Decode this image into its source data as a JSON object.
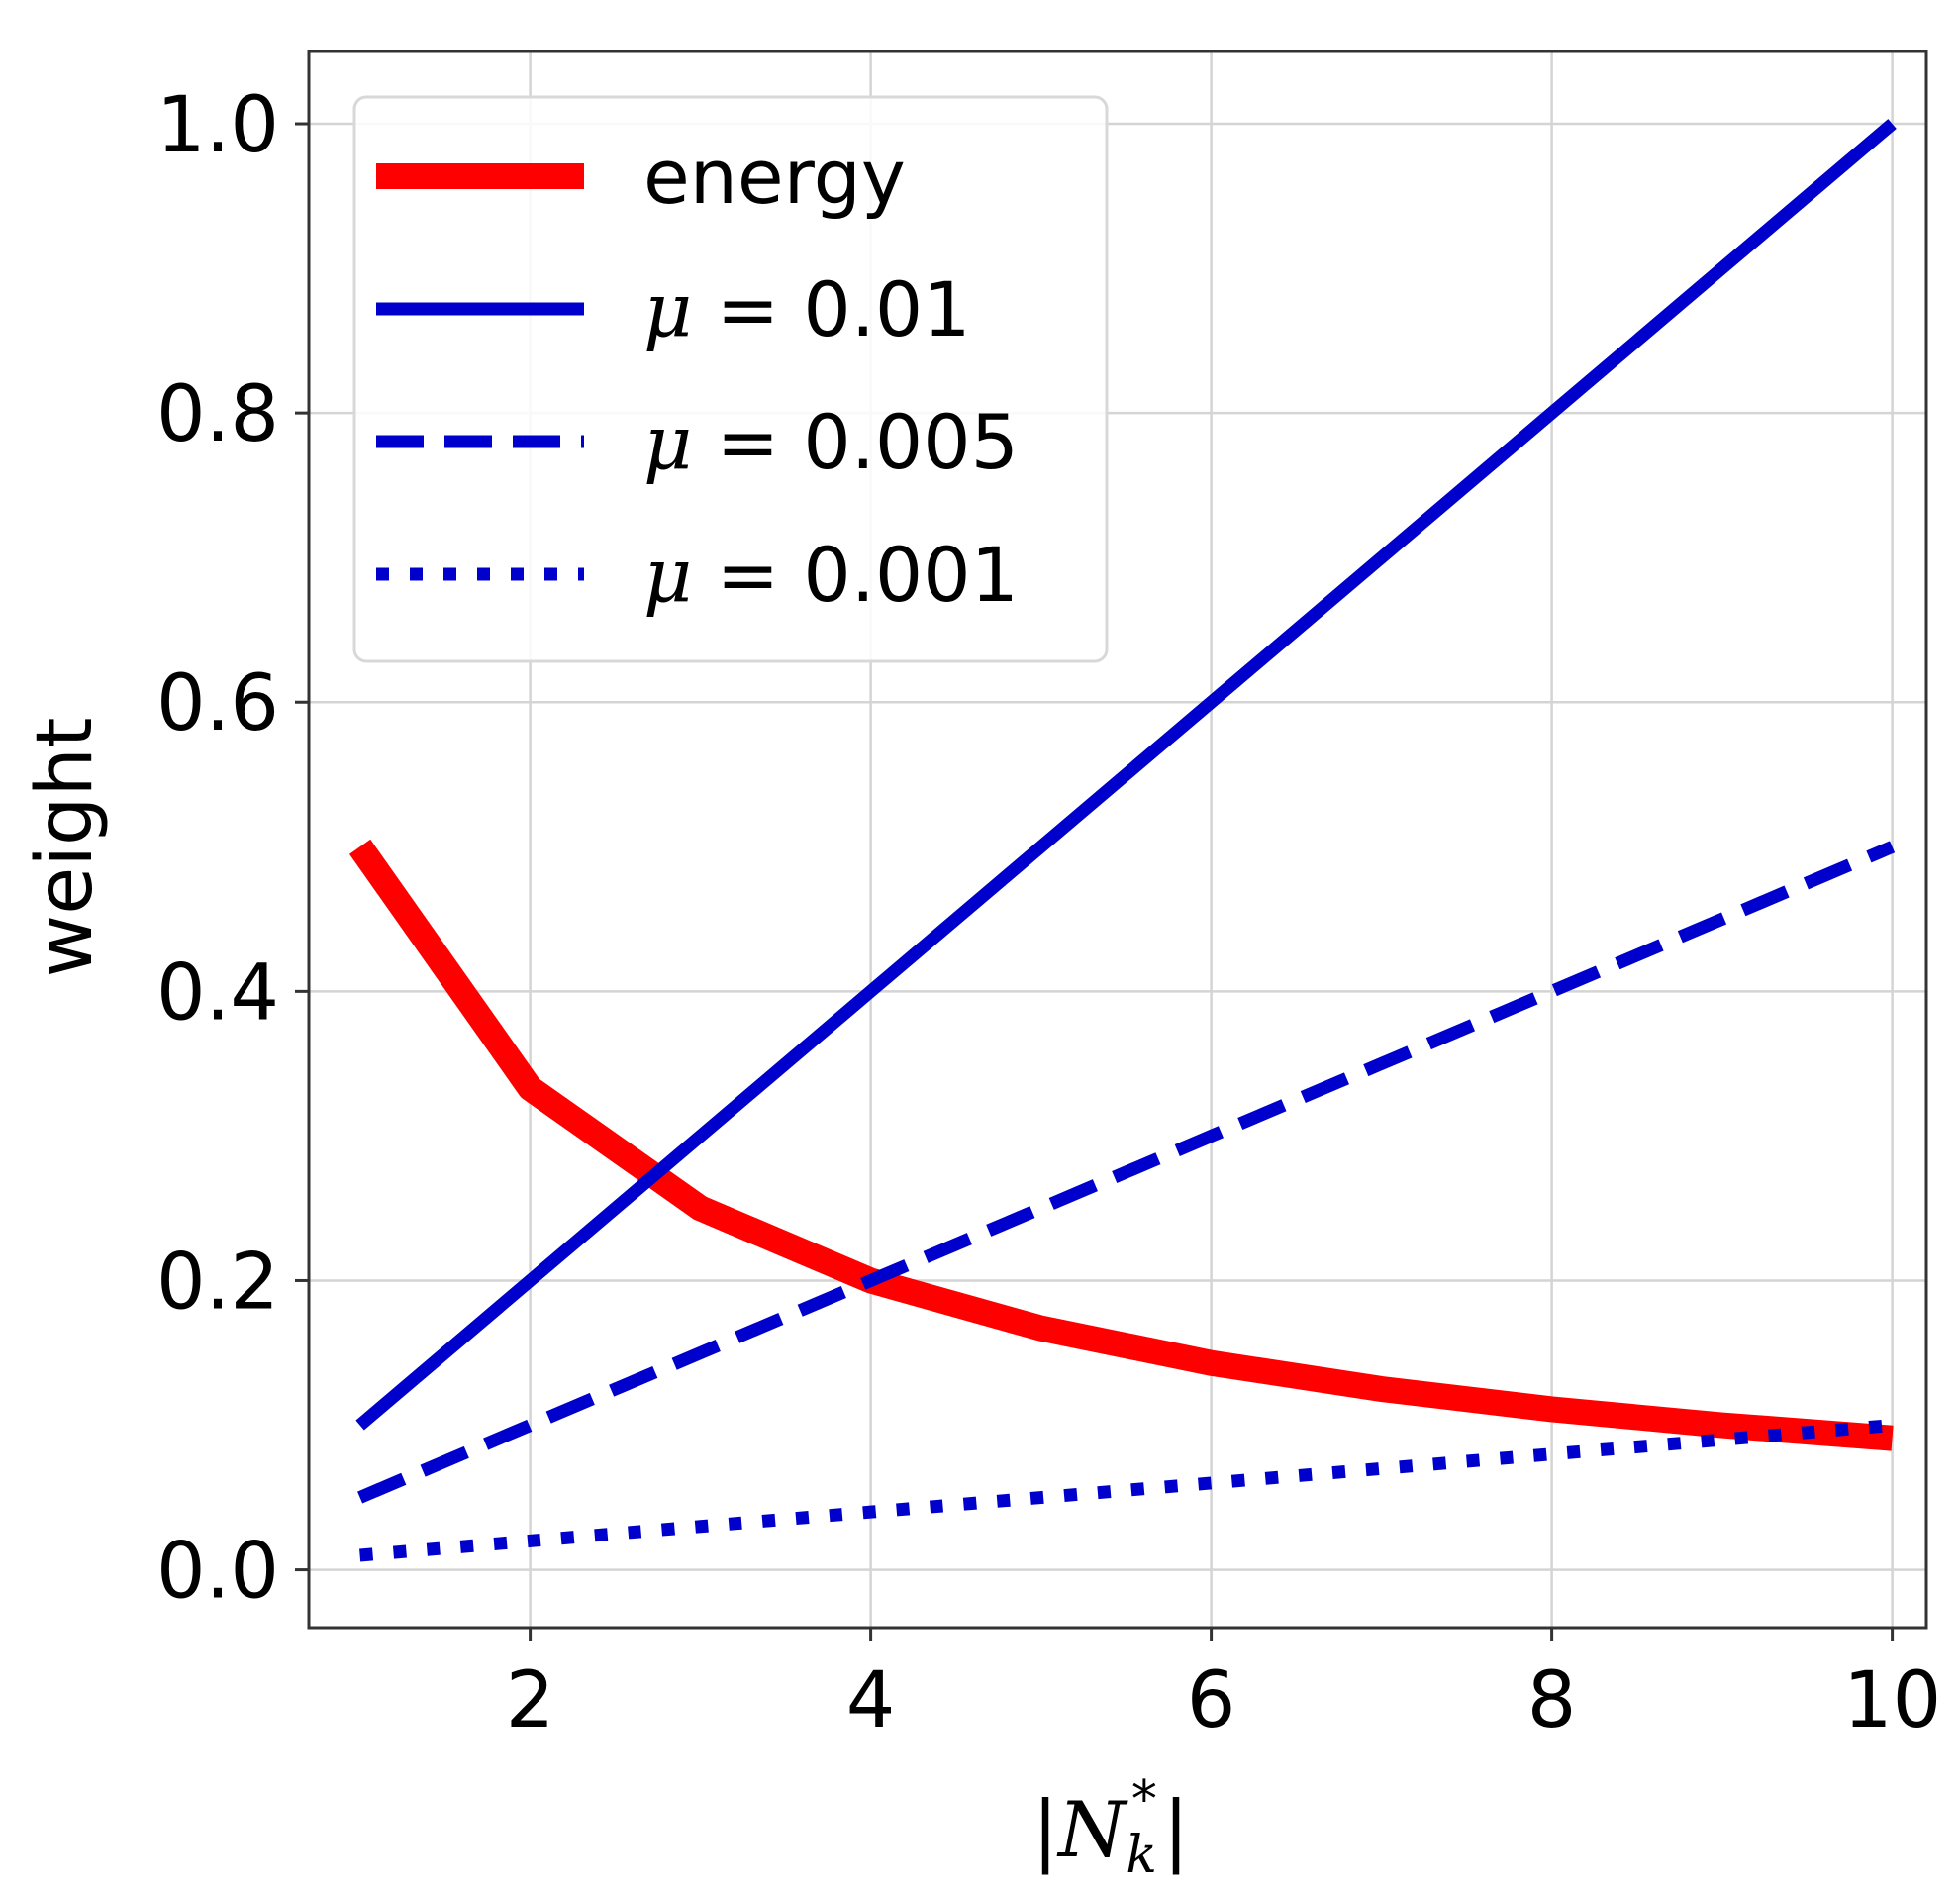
{
  "chart_data": {
    "type": "line",
    "xlabel": {
      "pre": "|",
      "var": "N",
      "sub": "k",
      "sup": "*",
      "post": "|"
    },
    "ylabel": "weight",
    "xlim": [
      0.7,
      10.2
    ],
    "ylim": [
      -0.04,
      1.05
    ],
    "xticks": [
      2,
      4,
      6,
      8,
      10
    ],
    "yticks": [
      0.0,
      0.2,
      0.4,
      0.6,
      0.8,
      1.0
    ],
    "xtick_labels": [
      "2",
      "4",
      "6",
      "8",
      "10"
    ],
    "ytick_labels": [
      "0.0",
      "0.2",
      "0.4",
      "0.6",
      "0.8",
      "1.0"
    ],
    "grid": true,
    "legend_position": "upper-left",
    "x": [
      1,
      2,
      3,
      4,
      5,
      6,
      7,
      8,
      9,
      10
    ],
    "series": [
      {
        "name": "energy",
        "label_text": "energy",
        "color": "#ff0000",
        "style": "solid-thick",
        "values": [
          0.5,
          0.333,
          0.25,
          0.2,
          0.167,
          0.143,
          0.125,
          0.111,
          0.1,
          0.091
        ]
      },
      {
        "name": "μ = 0.01",
        "label_math": "μ",
        "label_text": " = 0.01",
        "color": "#0000cc",
        "style": "solid",
        "values": [
          0.1,
          0.2,
          0.3,
          0.4,
          0.5,
          0.6,
          0.7,
          0.8,
          0.9,
          1.0
        ]
      },
      {
        "name": "μ = 0.005",
        "label_math": "μ",
        "label_text": " = 0.005",
        "color": "#0000cc",
        "style": "dashed",
        "values": [
          0.05,
          0.1,
          0.15,
          0.2,
          0.25,
          0.3,
          0.35,
          0.4,
          0.45,
          0.5
        ]
      },
      {
        "name": "μ = 0.001",
        "label_math": "μ",
        "label_text": " = 0.001",
        "color": "#0000cc",
        "style": "dotted",
        "values": [
          0.01,
          0.02,
          0.03,
          0.04,
          0.05,
          0.06,
          0.07,
          0.08,
          0.09,
          0.1
        ]
      }
    ]
  }
}
